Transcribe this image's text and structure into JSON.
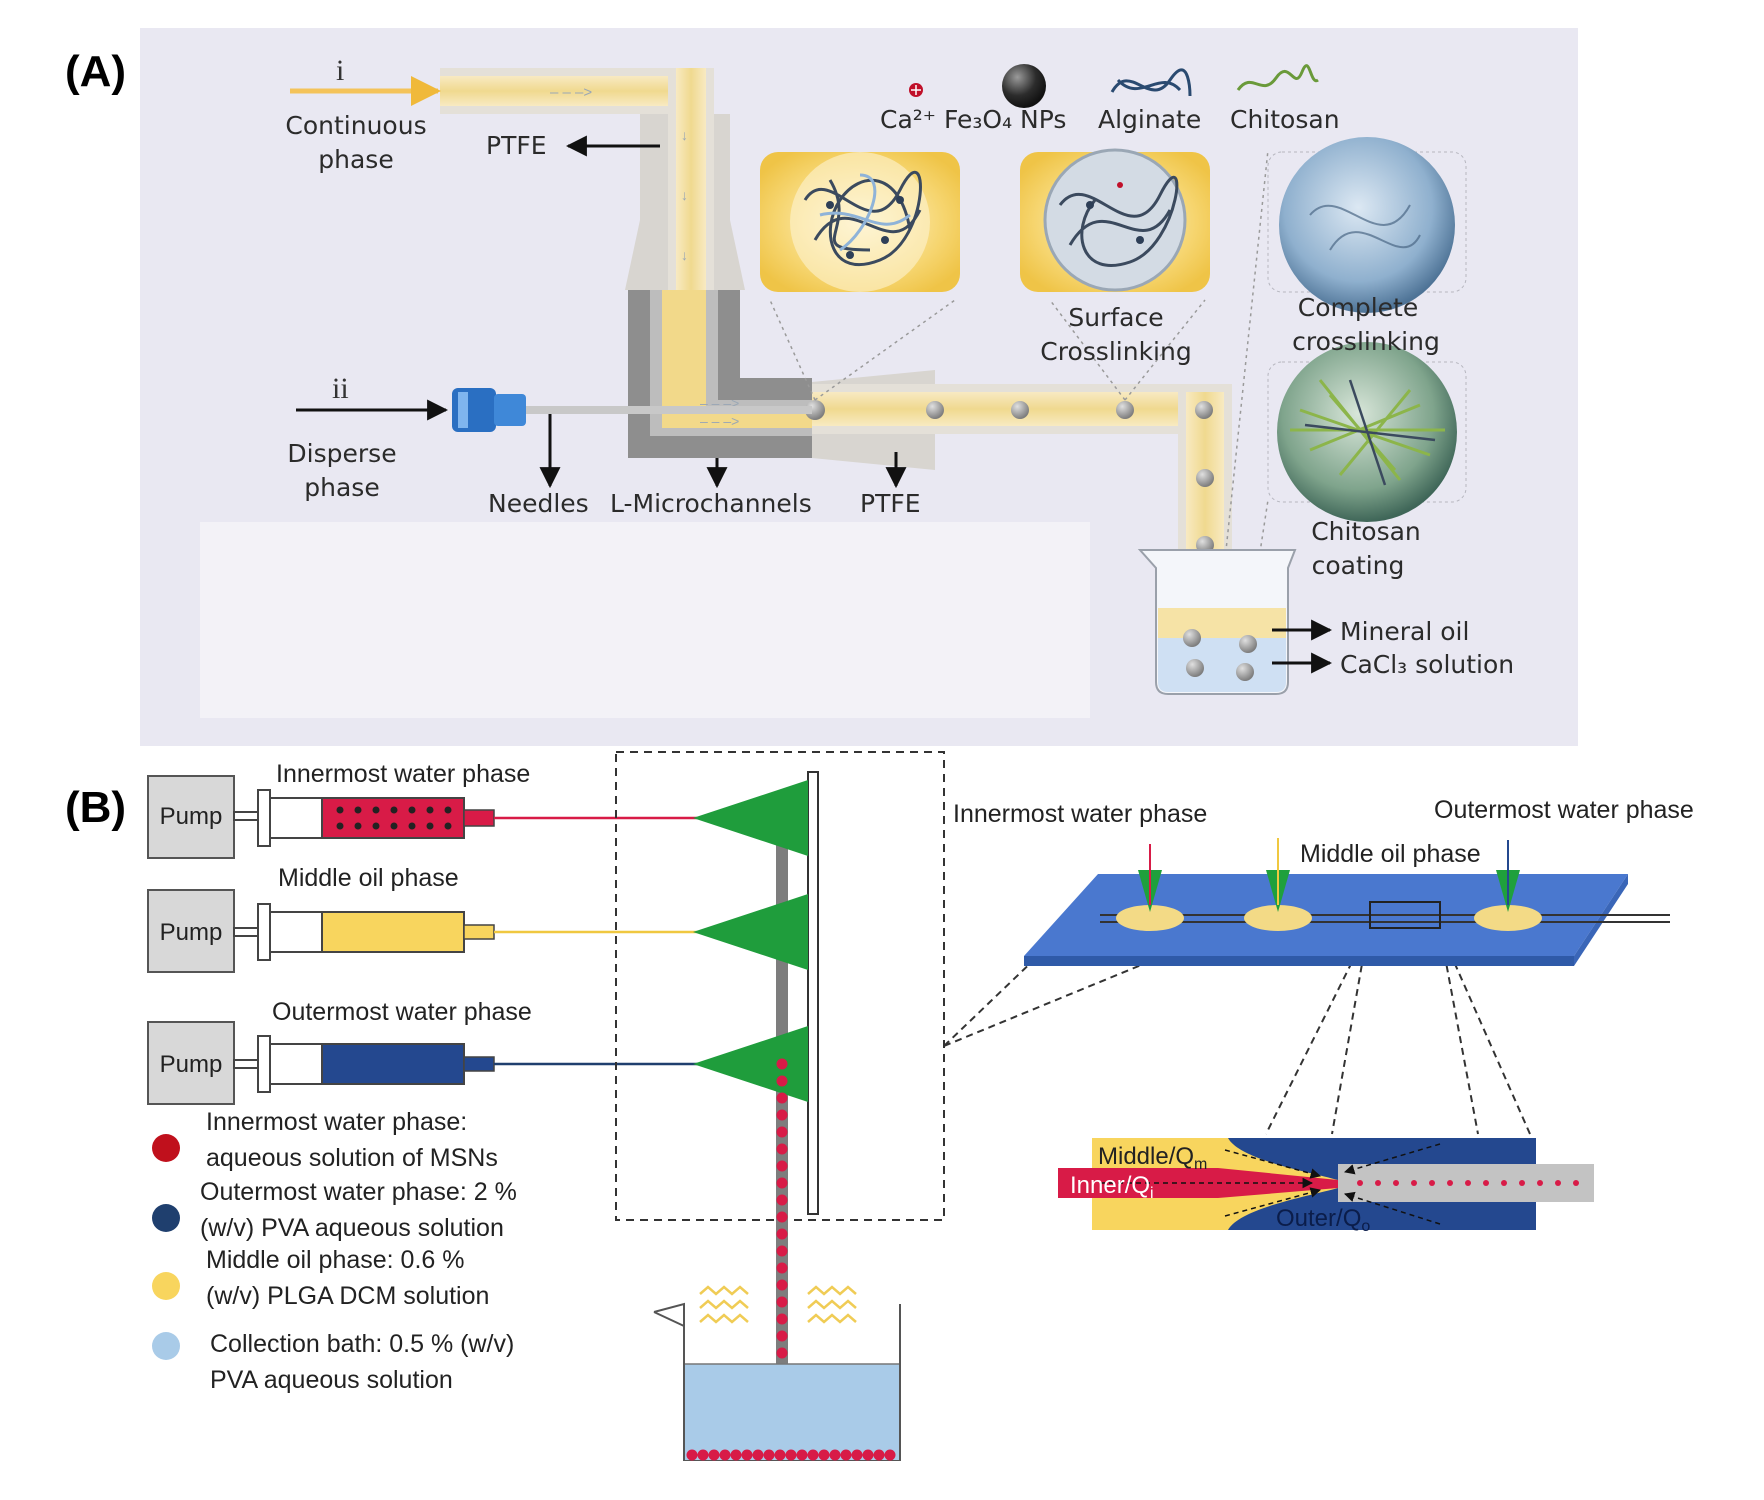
{
  "panel_a": {
    "tag": "(A)",
    "roman_i": "i",
    "roman_ii": "ii",
    "continuous_phase": [
      "Continuous",
      "phase"
    ],
    "disperse_phase": [
      "Disperse",
      "phase"
    ],
    "ptfe_top": "PTFE",
    "needles": "Needles",
    "l_microchannels": "L-Microchannels",
    "ptfe_bottom": "PTFE",
    "legend": {
      "ca": "Ca²⁺",
      "fe3o4": "Fe₃O₄ NPs",
      "alginate": "Alginate",
      "chitosan": "Chitosan"
    },
    "surface_crosslinking": [
      "Surface",
      "Crosslinking"
    ],
    "complete_crosslinking": [
      "Complete",
      "crosslinking"
    ],
    "chitosan_coating": [
      "Chitosan",
      "coating"
    ],
    "mineral_oil": "Mineral oil",
    "cacl3_solution": "CaCl₃ solution",
    "colors": {
      "background": "#e9e8f2",
      "channel": "#f3e3b4",
      "bead": "#9a9a9a"
    }
  },
  "panel_b": {
    "tag": "(B)",
    "pump_label": "Pump",
    "innermost_water_phase": "Innermost water phase",
    "middle_oil_phase": "Middle oil phase",
    "outermost_water_phase": "Outermost water phase",
    "chip_innermost": "Innermost water phase",
    "chip_middle": "Middle oil phase",
    "chip_outermost": "Outermost water phase",
    "detail": {
      "middle": "Middle/Q",
      "middle_sub": "m",
      "inner": "Inner/Q",
      "inner_sub": "i",
      "outer": "Outer/Q",
      "outer_sub": "o"
    },
    "legend": [
      {
        "lines": [
          "Innermost water phase:",
          "aqueous solution of MSNs"
        ],
        "color": "#c0101c"
      },
      {
        "lines": [
          "Outermost water phase: 2 %",
          "(w/v) PVA aqueous solution"
        ],
        "color": "#1f3f6e"
      },
      {
        "lines": [
          "Middle oil phase: 0.6 %",
          "(w/v) PLGA DCM solution"
        ],
        "color": "#f8d55e"
      },
      {
        "lines": [
          "Collection bath: 0.5 % (w/v)",
          "PVA aqueous solution"
        ],
        "color": "#a9cbe8"
      }
    ],
    "colors": {
      "inner": "#d81b47",
      "middle": "#f8d55e",
      "outer": "#24488f",
      "nozzle": "#1fa03c",
      "chip": "#4a78cf",
      "bath": "#a9cbe8"
    }
  }
}
